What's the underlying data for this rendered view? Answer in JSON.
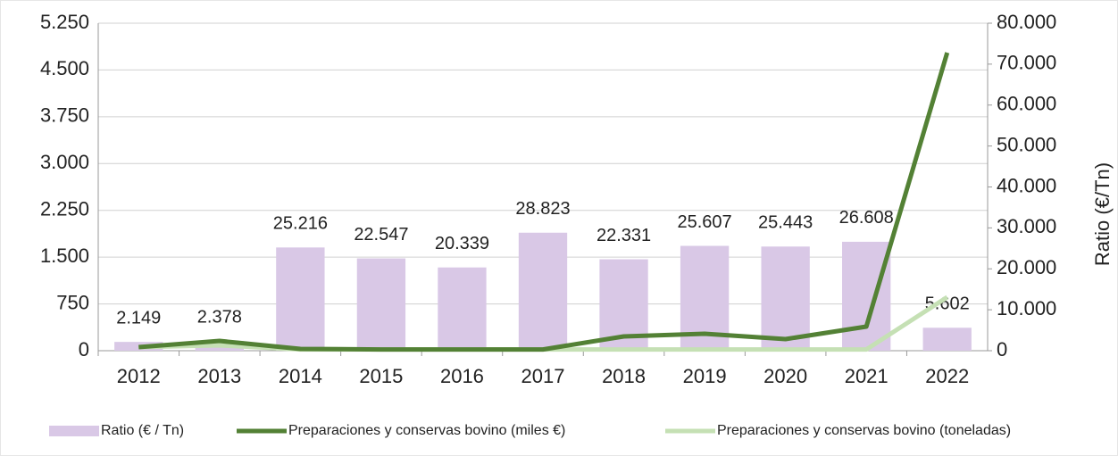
{
  "chart_data": {
    "type": "combo",
    "y2label": "Ratio (€/Tn)",
    "categories": [
      "2012",
      "2013",
      "2014",
      "2015",
      "2016",
      "2017",
      "2018",
      "2019",
      "2020",
      "2021",
      "2022"
    ],
    "series": [
      {
        "name": "Ratio (€ / Tn)",
        "type": "bar",
        "axis": "y2",
        "color": "#d9c8e6",
        "values": [
          2149,
          2378,
          25216,
          22547,
          20339,
          28823,
          22331,
          25607,
          25443,
          26608,
          5602
        ],
        "value_labels": [
          "2.149",
          "2.378",
          "25.216",
          "22.547",
          "20.339",
          "28.823",
          "22.331",
          "25.607",
          "25.443",
          "26.608",
          "5.602"
        ]
      },
      {
        "name": "Preparaciones y conservas bovino (miles €)",
        "type": "line",
        "color": "#538135",
        "values": [
          57,
          157,
          29,
          20,
          20,
          20,
          229,
          272,
          186,
          386,
          4778
        ]
      },
      {
        "name": "Preparaciones y conservas bovino (toneladas)",
        "type": "line",
        "color": "#c5e0b4",
        "values": [
          57,
          86,
          20,
          20,
          20,
          20,
          20,
          20,
          20,
          20,
          858
        ]
      }
    ],
    "ylim": [
      0,
      5250
    ],
    "yticks": [
      0,
      {
        "value": 750,
        "label": "750"
      },
      {
        "value": 1500,
        "label": "1.500"
      },
      {
        "value": 2250,
        "label": "2.250"
      },
      {
        "value": 3000,
        "label": "3.000"
      },
      {
        "value": 3750,
        "label": "3.750"
      },
      {
        "value": 4500,
        "label": "4.500"
      },
      {
        "value": 5250,
        "label": "5.250"
      }
    ],
    "y2lim": [
      0,
      80000
    ],
    "y2ticks": [
      0,
      {
        "value": 10000,
        "label": "10.000"
      },
      {
        "value": 20000,
        "label": "20.000"
      },
      {
        "value": 30000,
        "label": "30.000"
      },
      {
        "value": 40000,
        "label": "40.000"
      },
      {
        "value": 50000,
        "label": "50.000"
      },
      {
        "value": 60000,
        "label": "60.000"
      },
      {
        "value": 70000,
        "label": "70.000"
      },
      {
        "value": 80000,
        "label": "80.000"
      }
    ],
    "grid": true
  }
}
